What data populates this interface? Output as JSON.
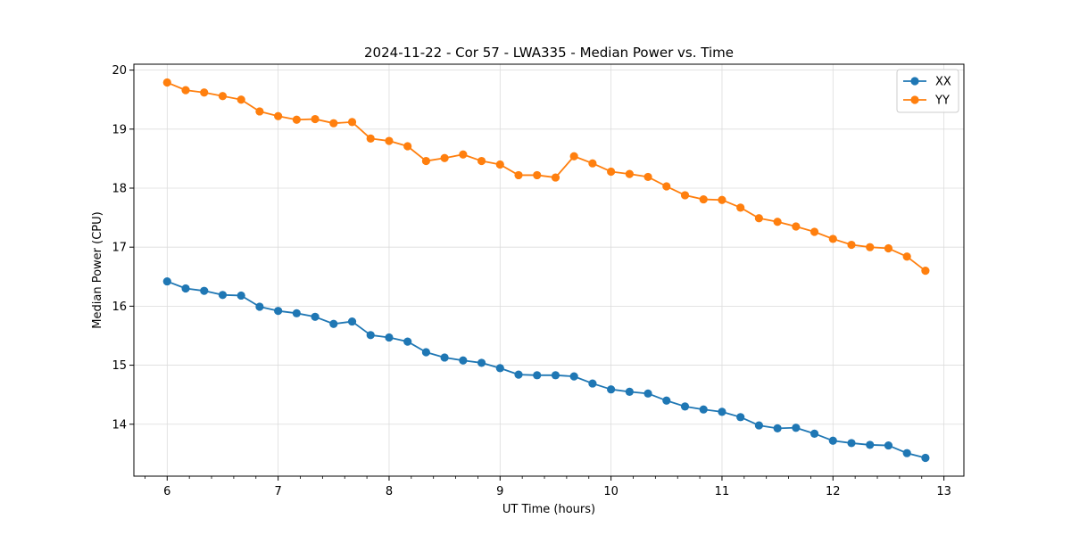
{
  "chart_data": {
    "type": "line",
    "title": "2024-11-22 - Cor 57 - LWA335 - Median Power vs. Time",
    "xlabel": "UT Time (hours)",
    "ylabel": "Median Power (CPU)",
    "xlim": [
      5.7,
      13.18
    ],
    "ylim": [
      13.12,
      20.1
    ],
    "xticks": [
      6,
      7,
      8,
      9,
      10,
      11,
      12,
      13
    ],
    "yticks": [
      14,
      15,
      16,
      17,
      18,
      19,
      20
    ],
    "minor_xtick_step": 0.2,
    "grid": true,
    "legend_position": "top-right",
    "x": [
      6.0,
      6.1667,
      6.3333,
      6.5,
      6.6667,
      6.8333,
      7.0,
      7.1667,
      7.3333,
      7.5,
      7.6667,
      7.8333,
      8.0,
      8.1667,
      8.3333,
      8.5,
      8.6667,
      8.8333,
      9.0,
      9.1667,
      9.3333,
      9.5,
      9.6667,
      9.8333,
      10.0,
      10.1667,
      10.3333,
      10.5,
      10.6667,
      10.8333,
      11.0,
      11.1667,
      11.3333,
      11.5,
      11.6667,
      11.8333,
      12.0,
      12.1667,
      12.3333,
      12.5,
      12.6667,
      12.8333
    ],
    "series": [
      {
        "name": "XX",
        "color": "#1f77b4",
        "values": [
          16.42,
          16.3,
          16.26,
          16.19,
          16.18,
          15.99,
          15.92,
          15.88,
          15.82,
          15.7,
          15.74,
          15.51,
          15.47,
          15.4,
          15.22,
          15.13,
          15.08,
          15.04,
          14.95,
          14.84,
          14.83,
          14.83,
          14.81,
          14.69,
          14.59,
          14.55,
          14.52,
          14.4,
          14.3,
          14.25,
          14.21,
          14.12,
          13.98,
          13.93,
          13.94,
          13.84,
          13.72,
          13.68,
          13.65,
          13.64,
          13.51,
          13.43
        ]
      },
      {
        "name": "YY",
        "color": "#ff7f0e",
        "values": [
          19.79,
          19.66,
          19.62,
          19.56,
          19.5,
          19.3,
          19.22,
          19.16,
          19.17,
          19.1,
          19.12,
          18.84,
          18.8,
          18.71,
          18.46,
          18.51,
          18.57,
          18.46,
          18.4,
          18.22,
          18.22,
          18.18,
          18.54,
          18.42,
          18.28,
          18.24,
          18.19,
          18.03,
          17.88,
          17.81,
          17.8,
          17.67,
          17.49,
          17.43,
          17.35,
          17.26,
          17.14,
          17.04,
          17.0,
          16.98,
          16.84,
          16.6
        ]
      }
    ]
  }
}
